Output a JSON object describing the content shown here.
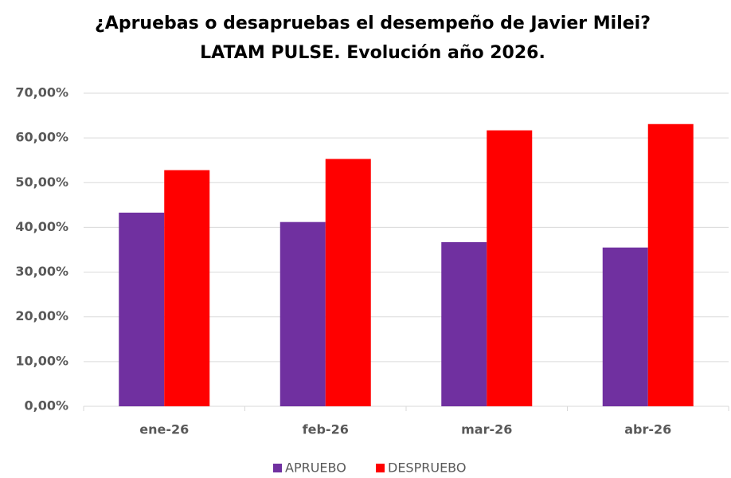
{
  "chart_data": {
    "type": "bar",
    "title": "¿Apruebas o desapruebas el desempeño de Javier Milei?",
    "subtitle": "LATAM PULSE. Evolución año 2026.",
    "categories": [
      "ene-26",
      "feb-26",
      "mar-26",
      "abr-26"
    ],
    "series": [
      {
        "name": "APRUEBO",
        "color": "#7030a0",
        "values": [
          43.3,
          41.2,
          36.7,
          35.5
        ]
      },
      {
        "name": "DESPRUEBO",
        "color": "#ff0000",
        "values": [
          52.8,
          55.3,
          61.7,
          63.1
        ]
      }
    ],
    "ylim": [
      0,
      70
    ],
    "yticks": [
      {
        "value": 0,
        "label": "0,00%"
      },
      {
        "value": 10,
        "label": "10,00%"
      },
      {
        "value": 20,
        "label": "20,00%"
      },
      {
        "value": 30,
        "label": "30,00%"
      },
      {
        "value": 40,
        "label": "40,00%"
      },
      {
        "value": 50,
        "label": "50,00%"
      },
      {
        "value": 60,
        "label": "60,00%"
      },
      {
        "value": 70,
        "label": "70,00%"
      }
    ],
    "grid": true,
    "legend": "bottom"
  }
}
